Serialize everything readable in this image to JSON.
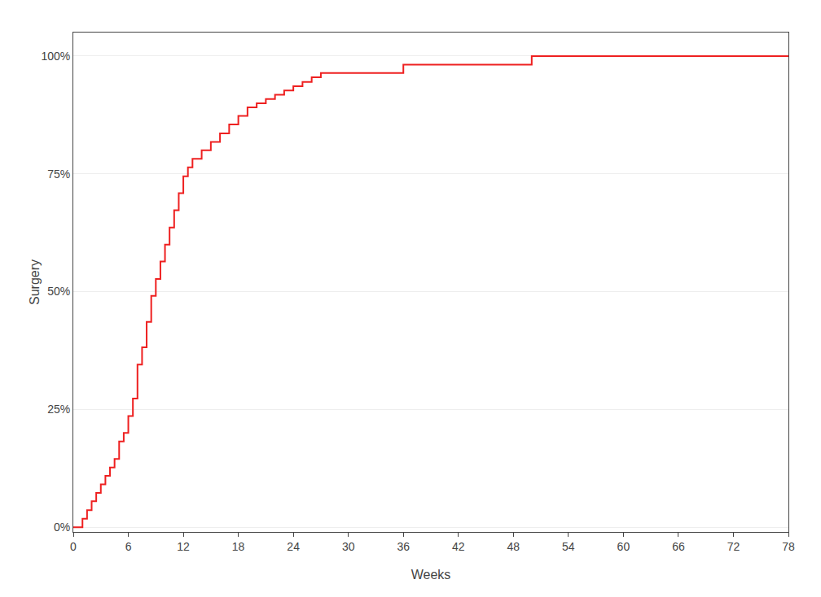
{
  "chart_data": {
    "type": "step",
    "xlabel": "Weeks",
    "ylabel": "Surgery",
    "color": "#ee2020",
    "grid": "y",
    "xlim": [
      0,
      78
    ],
    "ylim": [
      -0.01,
      1.05
    ],
    "xticks": [
      0,
      6,
      12,
      18,
      24,
      30,
      36,
      42,
      48,
      54,
      60,
      66,
      72,
      78
    ],
    "yticks": [
      {
        "value": 0.0,
        "label": "0%"
      },
      {
        "value": 0.25,
        "label": "25%"
      },
      {
        "value": 0.5,
        "label": "50%"
      },
      {
        "value": 0.75,
        "label": "75%"
      },
      {
        "value": 1.0,
        "label": "100%"
      }
    ],
    "x": [
      0,
      1.0,
      1.5,
      2.0,
      2.5,
      3.0,
      3.5,
      4.0,
      4.5,
      5.0,
      5.5,
      6.0,
      6.5,
      7.0,
      7.5,
      8.0,
      8.5,
      9.0,
      9.5,
      10.0,
      10.5,
      11.0,
      11.5,
      12.0,
      12.5,
      13.0,
      14.0,
      15.0,
      16.0,
      17.0,
      18.0,
      19.0,
      20.0,
      21.0,
      22.0,
      23.0,
      24.0,
      25.0,
      26.0,
      27.0,
      28.0,
      29.0,
      30.0,
      31.0,
      32.5,
      34.0,
      36.0,
      38.5,
      42.0,
      46.0,
      48.0,
      50.0,
      76.0,
      78.0
    ],
    "values": [
      0.0,
      0.018,
      0.036,
      0.055,
      0.073,
      0.091,
      0.109,
      0.127,
      0.145,
      0.182,
      0.2,
      0.236,
      0.273,
      0.345,
      0.382,
      0.436,
      0.491,
      0.527,
      0.564,
      0.6,
      0.636,
      0.673,
      0.709,
      0.745,
      0.764,
      0.782,
      0.8,
      0.818,
      0.836,
      0.855,
      0.873,
      0.891,
      0.9,
      0.909,
      0.918,
      0.927,
      0.936,
      0.945,
      0.955,
      0.964,
      0.964,
      0.964,
      0.964,
      0.964,
      0.964,
      0.964,
      0.982,
      0.982,
      0.982,
      0.982,
      0.982,
      1.0,
      1.0,
      1.0
    ]
  }
}
